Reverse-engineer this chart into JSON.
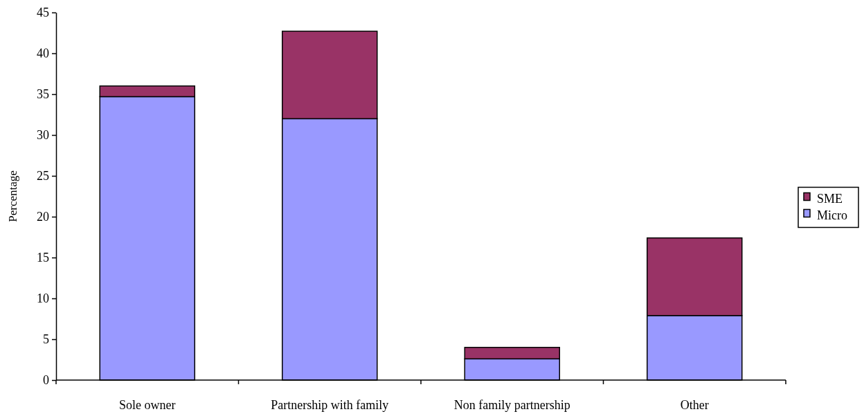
{
  "chart_data": {
    "type": "bar",
    "stacked": true,
    "ylabel": "Percentage",
    "categories": [
      "Sole owner",
      "Partnership with family",
      "Non family partnership",
      "Other"
    ],
    "series": [
      {
        "name": "Micro",
        "color": "#9999ff",
        "values": [
          34.7,
          32.0,
          2.6,
          7.9
        ]
      },
      {
        "name": "SME",
        "color": "#993366",
        "values": [
          1.3,
          10.7,
          1.4,
          9.5
        ]
      }
    ],
    "ylim": [
      0,
      45
    ],
    "yticks": [
      0,
      5,
      10,
      15,
      20,
      25,
      30,
      35,
      40,
      45
    ],
    "grid": false,
    "legend": "right"
  }
}
